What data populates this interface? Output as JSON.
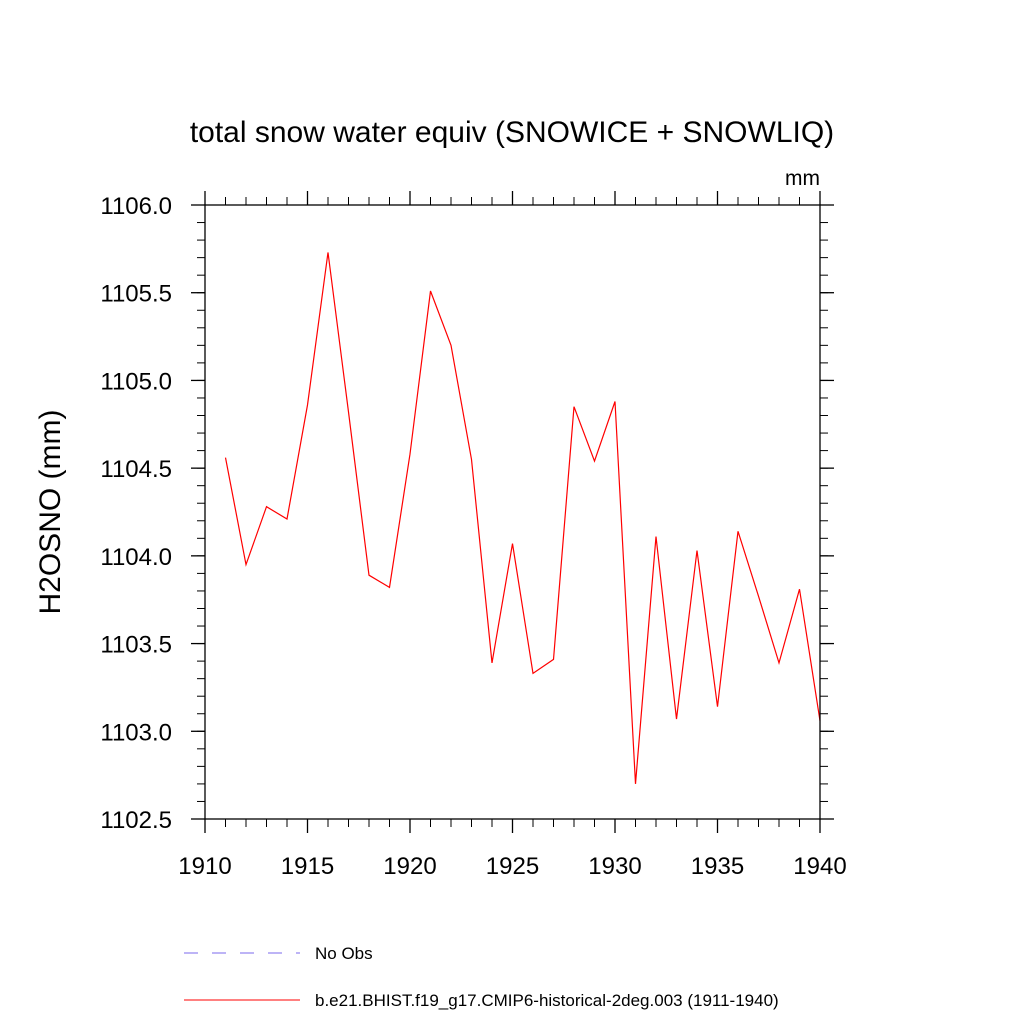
{
  "chart_data": {
    "type": "line",
    "title": "total snow water equiv (SNOWICE + SNOWLIQ)",
    "units_label": "mm",
    "xlabel": "",
    "ylabel": "H2OSNO  (mm)",
    "xlim": [
      1910,
      1940
    ],
    "ylim": [
      1102.5,
      1106.0
    ],
    "x_ticks": [
      1910,
      1915,
      1920,
      1925,
      1930,
      1935,
      1940
    ],
    "x_tick_labels": [
      "1910",
      "1915",
      "1920",
      "1925",
      "1930",
      "1935",
      "1940"
    ],
    "y_ticks": [
      1102.5,
      1103.0,
      1103.5,
      1104.0,
      1104.5,
      1105.0,
      1105.5,
      1106.0
    ],
    "y_tick_labels": [
      "1102.5",
      "1103.0",
      "1103.5",
      "1104.0",
      "1104.5",
      "1105.0",
      "1105.5",
      "1106.0"
    ],
    "x_minor_step": 1,
    "y_minor_step": 0.1,
    "grid": false,
    "legend_position": "bottom",
    "series": [
      {
        "name": "No Obs",
        "color": "#7b68ee",
        "dash": "dashed",
        "x": [],
        "y": []
      },
      {
        "name": "b.e21.BHIST.f19_g17.CMIP6-historical-2deg.003 (1911-1940)",
        "color": "#ff0000",
        "dash": "solid",
        "x": [
          1911,
          1912,
          1913,
          1914,
          1915,
          1916,
          1917,
          1918,
          1919,
          1920,
          1921,
          1922,
          1923,
          1924,
          1925,
          1926,
          1927,
          1928,
          1929,
          1930,
          1931,
          1932,
          1933,
          1934,
          1935,
          1936,
          1937,
          1938,
          1939,
          1940
        ],
        "y": [
          1104.56,
          1103.95,
          1104.28,
          1104.21,
          1104.86,
          1105.73,
          1104.82,
          1103.89,
          1103.82,
          1104.58,
          1105.51,
          1105.2,
          1104.55,
          1103.39,
          1104.07,
          1103.33,
          1103.41,
          1104.85,
          1104.54,
          1104.88,
          1102.7,
          1104.11,
          1103.07,
          1104.03,
          1103.14,
          1104.14,
          1103.77,
          1103.39,
          1103.81,
          1103.06
        ]
      }
    ]
  }
}
